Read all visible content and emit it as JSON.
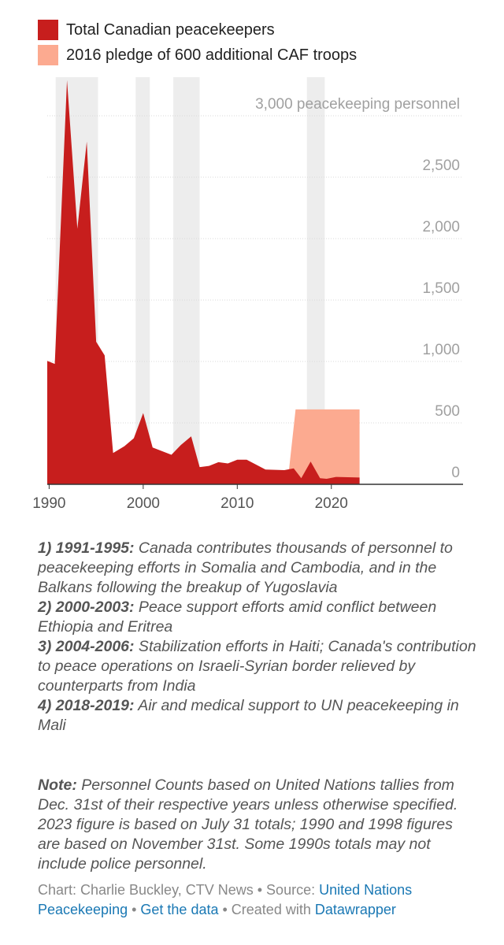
{
  "legend": {
    "items": [
      {
        "label": "Total Canadian peacekeepers",
        "color": "#c71e1d"
      },
      {
        "label": "2016 pledge of 600 additional CAF troops",
        "color": "#fcaa90"
      }
    ]
  },
  "chart_data": {
    "type": "area",
    "title": "",
    "xlabel": "",
    "ylabel": "peacekeeping personnel",
    "xlim": [
      1989.8,
      2034
    ],
    "ylim": [
      0,
      3000
    ],
    "x_ticks": [
      1990,
      2000,
      2010,
      2020
    ],
    "y_ticks": [
      {
        "value": 0,
        "label": "0"
      },
      {
        "value": 500,
        "label": "500"
      },
      {
        "value": 1000,
        "label": "1,000"
      },
      {
        "value": 1500,
        "label": "1,500"
      },
      {
        "value": 2000,
        "label": "2,000"
      },
      {
        "value": 2500,
        "label": "2,500"
      },
      {
        "value": 3000,
        "label": "3,000 peacekeeping personnel"
      }
    ],
    "shaded_periods": [
      {
        "start": 1990.7,
        "end": 1995.2
      },
      {
        "start": 1999.2,
        "end": 2000.7
      },
      {
        "start": 2003.2,
        "end": 2006.0
      },
      {
        "start": 2017.4,
        "end": 2019.3
      }
    ],
    "series": [
      {
        "name": "Total Canadian peacekeepers",
        "color": "#c71e1d",
        "points": [
          [
            1989.8,
            1005
          ],
          [
            1990.6,
            980
          ],
          [
            1991.9,
            3290
          ],
          [
            1993.0,
            2080
          ],
          [
            1994.0,
            2790
          ],
          [
            1995.0,
            1160
          ],
          [
            1995.9,
            1050
          ],
          [
            1996.8,
            255
          ],
          [
            1998.0,
            310
          ],
          [
            1999.0,
            375
          ],
          [
            2000.0,
            580
          ],
          [
            2001.0,
            300
          ],
          [
            2003.0,
            240
          ],
          [
            2004.0,
            320
          ],
          [
            2005.1,
            390
          ],
          [
            2006.0,
            140
          ],
          [
            2007.0,
            150
          ],
          [
            2008.0,
            180
          ],
          [
            2009.0,
            170
          ],
          [
            2010.0,
            200
          ],
          [
            2011.0,
            200
          ],
          [
            2012.0,
            160
          ],
          [
            2013.0,
            120
          ],
          [
            2015.0,
            115
          ],
          [
            2016.0,
            130
          ],
          [
            2016.8,
            50
          ],
          [
            2017.8,
            185
          ],
          [
            2018.8,
            50
          ],
          [
            2019.5,
            45
          ],
          [
            2020.5,
            60
          ],
          [
            2023.0,
            55
          ]
        ]
      },
      {
        "name": "2016 pledge of 600 additional CAF troops",
        "color": "#fcaa90",
        "points": [
          [
            2015.5,
            120
          ],
          [
            2016.2,
            610
          ],
          [
            2023.0,
            610
          ]
        ]
      }
    ]
  },
  "notes": [
    {
      "bold": "1) 1991-1995:",
      "text": " Canada contributes thousands of personnel to peacekeeping efforts in Somalia and Cambodia, and in the Balkans following the breakup of Yugoslavia"
    },
    {
      "bold": "2) 2000-2003:",
      "text": " Peace support efforts amid conflict between Ethiopia and Eritrea"
    },
    {
      "bold": "3) 2004-2006:",
      "text": " Stabilization efforts in Haiti; Canada's contribution to peace operations on Israeli-Syrian border relieved by counterparts from India"
    },
    {
      "bold": "4) 2018-2019:",
      "text": " Air and medical support to UN peacekeeping in Mali"
    }
  ],
  "note": {
    "label": "Note:",
    "text": " Personnel Counts based on United Nations tallies from Dec. 31st of their respective years unless otherwise specified. 2023 figure is based on July 31 totals; 1990 and 1998 figures are based on November 31st. Some 1990s totals may not include police personnel."
  },
  "credits": {
    "chart_by": "Chart: Charlie Buckley, CTV News",
    "sep1": " • Source: ",
    "source": "United Nations Peacekeeping",
    "sep2": " • ",
    "get_data": "Get the data",
    "sep3": " • Created with ",
    "tool": "Datawrapper"
  }
}
